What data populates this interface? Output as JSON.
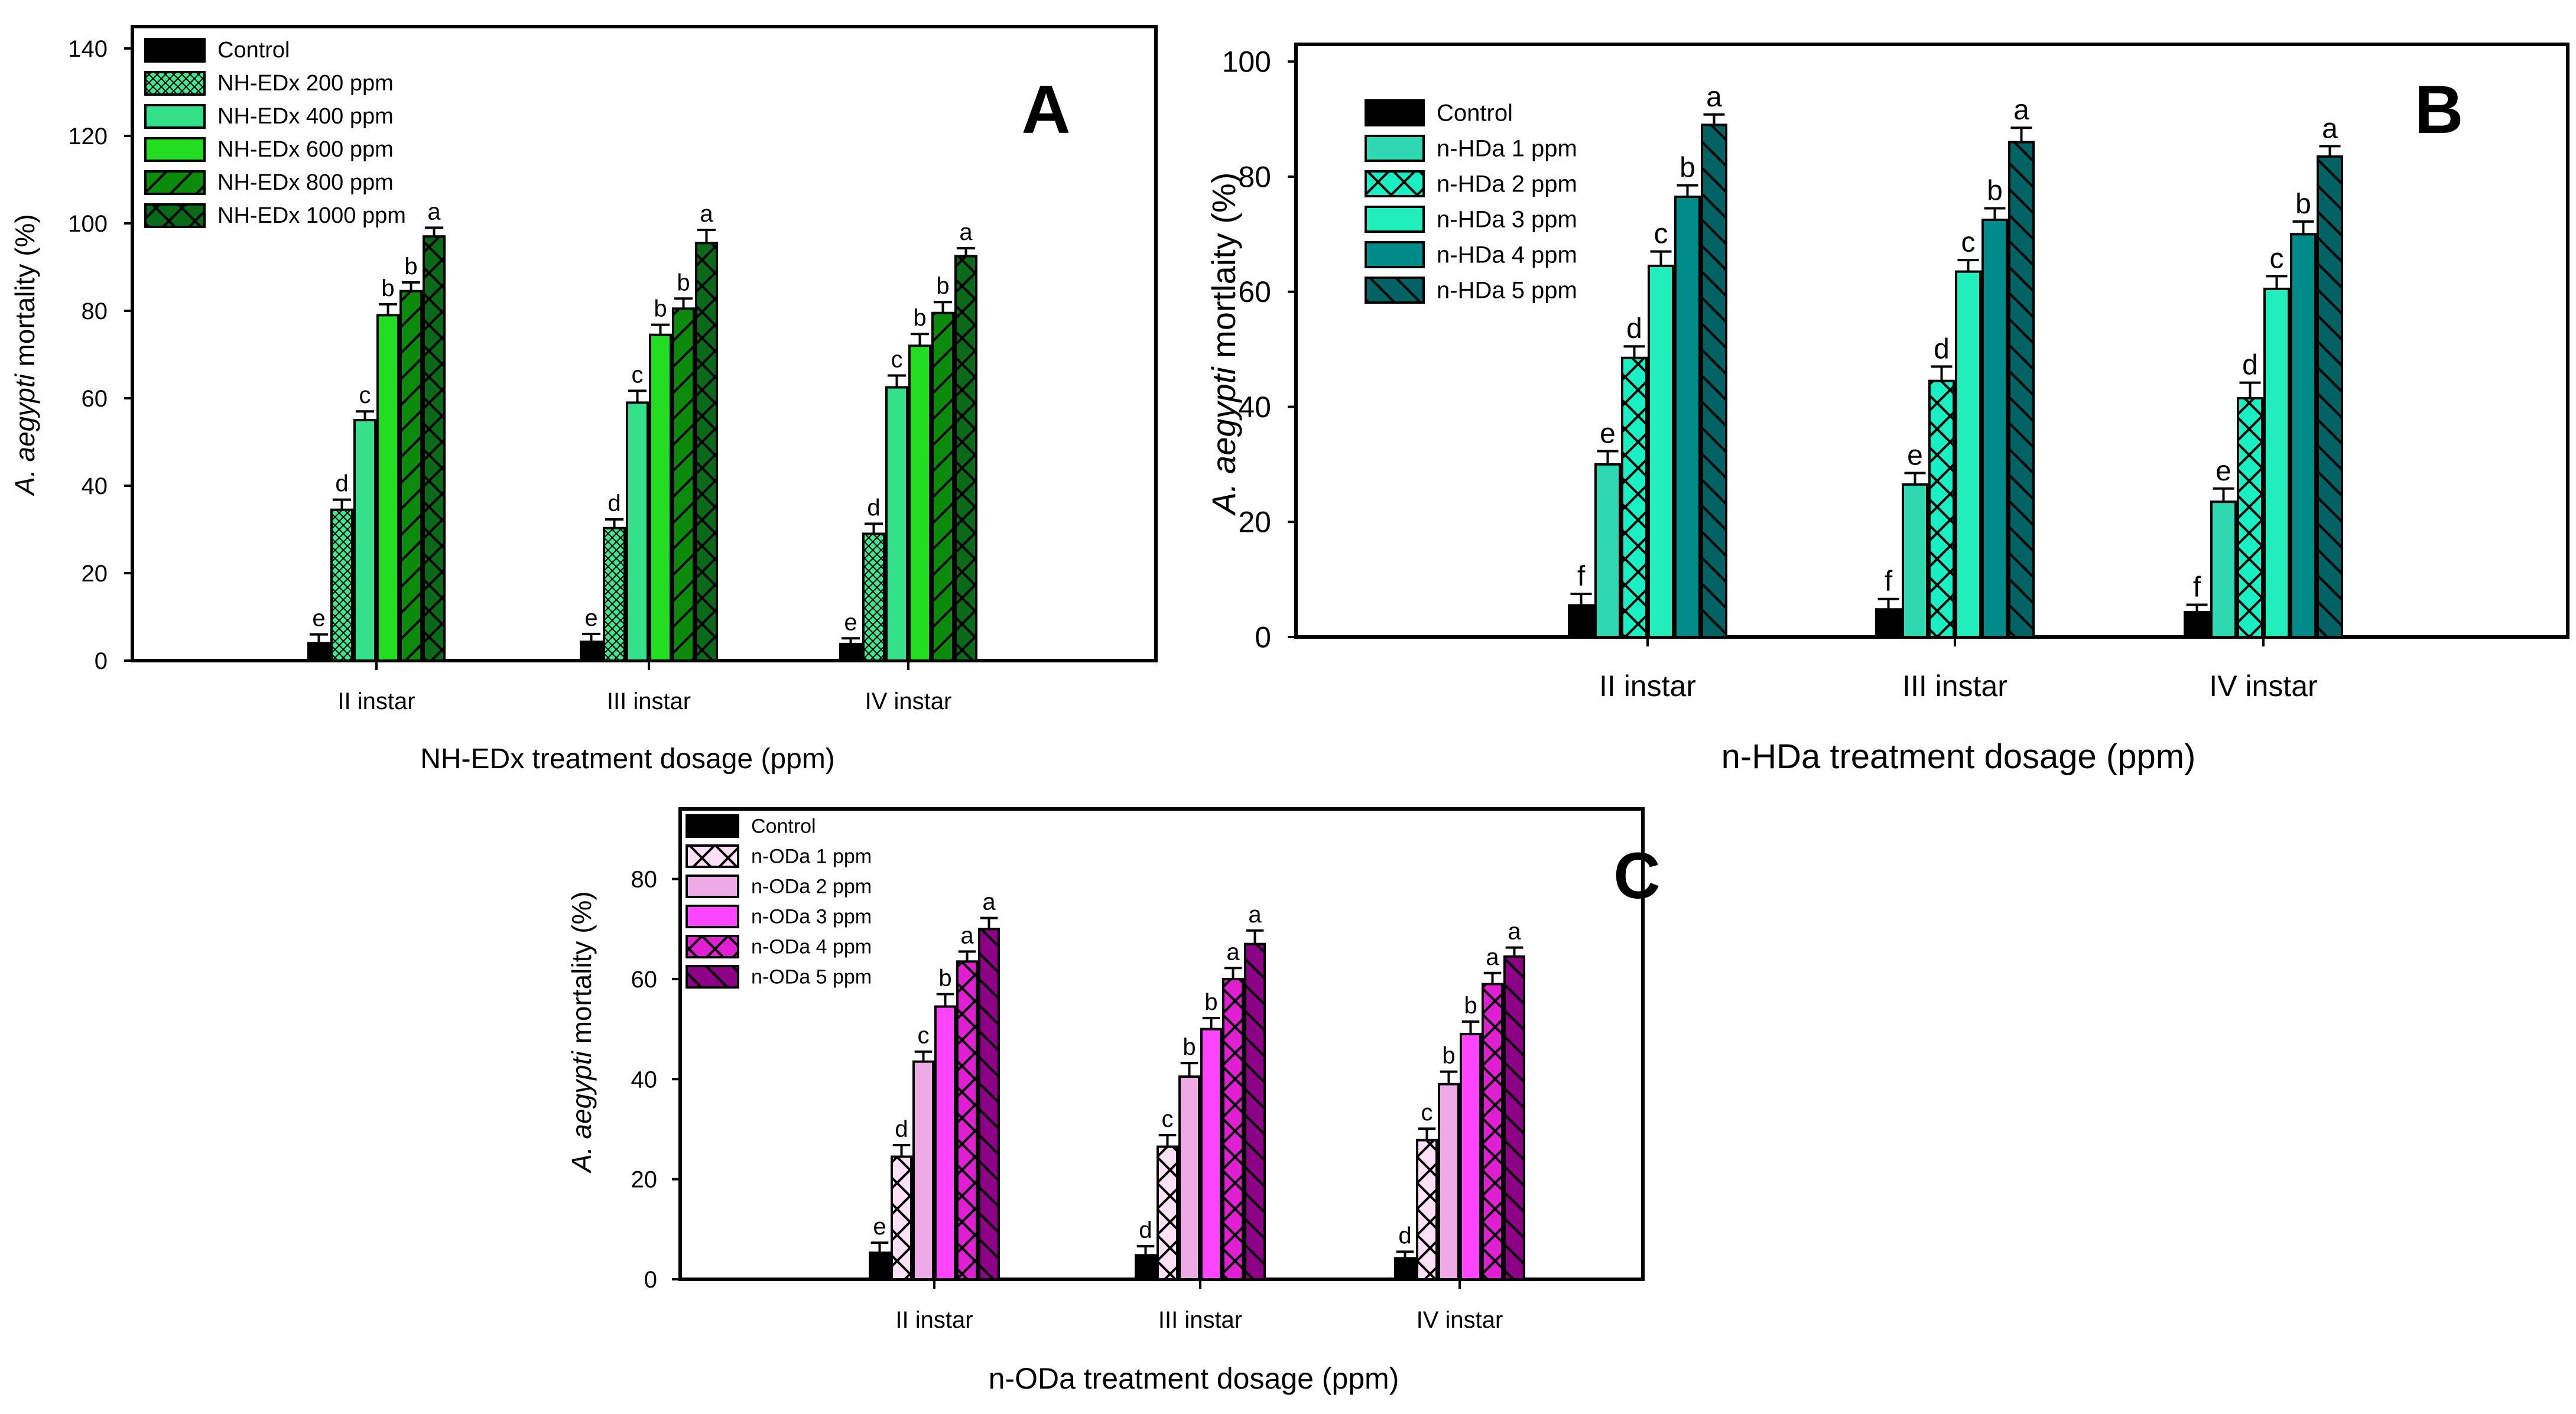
{
  "chart_data": [
    {
      "type": "bar",
      "panel_letter": "A",
      "xlabel": "NH-EDx treatment dosage (ppm)",
      "ylabel_italic": "A. aegypti",
      "ylabel_rest": " mortality (%)",
      "ylim": [
        0,
        145
      ],
      "yticks": [
        0,
        20,
        40,
        60,
        80,
        100,
        120,
        140
      ],
      "categories": [
        "II instar",
        "III instar",
        "IV instar"
      ],
      "series": [
        {
          "name": "Control",
          "color": "#000000",
          "pattern": "none",
          "values": [
            4.0,
            4.3,
            3.8
          ],
          "errors": [
            2.0,
            1.8,
            1.3
          ],
          "letters": [
            "e",
            "e",
            "e"
          ]
        },
        {
          "name": "NH-EDx 200 ppm",
          "color": "#3ee88e",
          "pattern": "fine-cross",
          "values": [
            34.5,
            30.3,
            29.0
          ],
          "errors": [
            2.3,
            2.0,
            2.3
          ],
          "letters": [
            "d",
            "d",
            "d"
          ]
        },
        {
          "name": "NH-EDx 400 ppm",
          "color": "#35e08a",
          "pattern": "none",
          "values": [
            55.0,
            59.0,
            62.5
          ],
          "errors": [
            2.0,
            2.7,
            2.7
          ],
          "letters": [
            "c",
            "c",
            "c"
          ]
        },
        {
          "name": "NH-EDx 600 ppm",
          "color": "#22dd22",
          "pattern": "none",
          "values": [
            79.0,
            74.5,
            72.0
          ],
          "errors": [
            2.5,
            2.3,
            2.7
          ],
          "letters": [
            "b",
            "b",
            "b"
          ]
        },
        {
          "name": "NH-EDx 800 ppm",
          "color": "#0b8a0b",
          "pattern": "diag-fwd",
          "values": [
            84.5,
            80.5,
            79.5
          ],
          "errors": [
            2.0,
            2.3,
            2.5
          ],
          "letters": [
            "b",
            "b",
            "b"
          ]
        },
        {
          "name": "NH-EDx 1000 ppm",
          "color": "#0a6a1a",
          "pattern": "cross",
          "values": [
            97.0,
            95.5,
            92.5
          ],
          "errors": [
            2.0,
            3.0,
            1.8
          ],
          "letters": [
            "a",
            "a",
            "a"
          ]
        }
      ]
    },
    {
      "type": "bar",
      "panel_letter": "B",
      "xlabel": "n-HDa treatment dosage (ppm)",
      "ylabel_italic": "A. aegypti",
      "ylabel_rest": " mortlaity (%)",
      "ylim": [
        0,
        103
      ],
      "yticks": [
        0,
        20,
        40,
        60,
        80,
        100
      ],
      "categories": [
        "II instar",
        "III instar",
        "IV instar"
      ],
      "series": [
        {
          "name": "Control",
          "color": "#000000",
          "pattern": "none",
          "values": [
            5.5,
            4.8,
            4.3
          ],
          "errors": [
            2.0,
            1.8,
            1.3
          ],
          "letters": [
            "f",
            "f",
            "f"
          ]
        },
        {
          "name": "n-HDa 1 ppm",
          "color": "#2fd8b0",
          "pattern": "none",
          "values": [
            30.0,
            26.5,
            23.5
          ],
          "errors": [
            2.3,
            2.0,
            2.3
          ],
          "letters": [
            "e",
            "e",
            "e"
          ]
        },
        {
          "name": "n-HDa 2 ppm",
          "color": "#18f0c4",
          "pattern": "cross",
          "values": [
            48.5,
            44.5,
            41.5
          ],
          "errors": [
            2.0,
            2.5,
            2.7
          ],
          "letters": [
            "d",
            "d",
            "d"
          ]
        },
        {
          "name": "n-HDa 3 ppm",
          "color": "#22eebb",
          "pattern": "none",
          "values": [
            64.5,
            63.5,
            60.5
          ],
          "errors": [
            2.5,
            2.0,
            2.2
          ],
          "letters": [
            "c",
            "c",
            "c"
          ]
        },
        {
          "name": "n-HDa 4 ppm",
          "color": "#008b8b",
          "pattern": "none",
          "values": [
            76.5,
            72.5,
            70.0
          ],
          "errors": [
            2.0,
            2.0,
            2.2
          ],
          "letters": [
            "b",
            "b",
            "b"
          ]
        },
        {
          "name": "n-HDa 5 ppm",
          "color": "#006262",
          "pattern": "diag-back",
          "values": [
            89.0,
            86.0,
            83.5
          ],
          "errors": [
            1.8,
            2.5,
            1.8
          ],
          "letters": [
            "a",
            "a",
            "a"
          ]
        }
      ]
    },
    {
      "type": "bar",
      "panel_letter": "C",
      "xlabel": "n-ODa treatment dosage (ppm)",
      "ylabel_italic": "A. aegypti",
      "ylabel_rest": " mortality (%)",
      "ylim": [
        0,
        94
      ],
      "yticks": [
        0,
        20,
        40,
        60,
        80
      ],
      "categories": [
        "II instar",
        "III instar",
        "IV instar"
      ],
      "series": [
        {
          "name": "Control",
          "color": "#000000",
          "pattern": "none",
          "values": [
            5.3,
            4.8,
            4.2
          ],
          "errors": [
            2.0,
            1.8,
            1.3
          ],
          "letters": [
            "e",
            "d",
            "d"
          ]
        },
        {
          "name": "n-ODa 1 ppm",
          "color": "#ffe0f6",
          "pattern": "cross",
          "values": [
            24.5,
            26.5,
            27.8
          ],
          "errors": [
            2.3,
            2.3,
            2.3
          ],
          "letters": [
            "d",
            "c",
            "c"
          ]
        },
        {
          "name": "n-ODa 2 ppm",
          "color": "#eeaae6",
          "pattern": "none",
          "values": [
            43.5,
            40.5,
            39.0
          ],
          "errors": [
            2.0,
            2.7,
            2.5
          ],
          "letters": [
            "c",
            "b",
            "b"
          ]
        },
        {
          "name": "n-ODa 3 ppm",
          "color": "#ff44ff",
          "pattern": "none",
          "values": [
            54.5,
            50.0,
            49.0
          ],
          "errors": [
            2.5,
            2.2,
            2.5
          ],
          "letters": [
            "b",
            "b",
            "b"
          ]
        },
        {
          "name": "n-ODa 4 ppm",
          "color": "#e01ed2",
          "pattern": "cross",
          "values": [
            63.5,
            60.0,
            59.0
          ],
          "errors": [
            2.0,
            2.2,
            2.2
          ],
          "letters": [
            "a",
            "a",
            "a"
          ]
        },
        {
          "name": "n-ODa 5 ppm",
          "color": "#8b0085",
          "pattern": "diag-back",
          "values": [
            70.0,
            67.0,
            64.5
          ],
          "errors": [
            2.2,
            2.7,
            1.8
          ],
          "letters": [
            "a",
            "a",
            "a"
          ]
        }
      ]
    }
  ]
}
